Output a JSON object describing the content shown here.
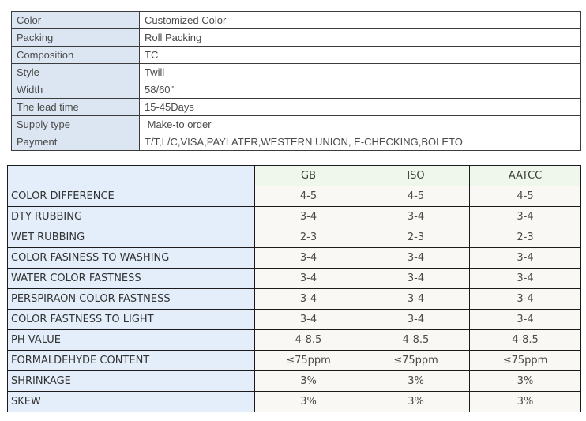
{
  "spec_table": {
    "rows": [
      {
        "label": "Color",
        "value": "Customized Color"
      },
      {
        "label": "Packing",
        "value": "Roll Packing"
      },
      {
        "label": "Composition",
        "value": "TC"
      },
      {
        "label": "Style",
        "value": "Twill"
      },
      {
        "label": "Width",
        "value": "58/60\""
      },
      {
        "label": "The lead time",
        "value": "15-45Days"
      },
      {
        "label": "Supply type",
        "value": " Make-to order"
      },
      {
        "label": "Payment",
        "value": "T/T,L/C,VISA,PAYLATER,WESTERN UNION, E-CHECKING,BOLETO"
      }
    ]
  },
  "standards_table": {
    "header": {
      "blank": "",
      "col1": "GB",
      "col2": "ISO",
      "col3": "AATCC"
    },
    "rows": [
      {
        "label": "COLOR DIFFERENCE",
        "gb": "4-5",
        "iso": "4-5",
        "aatcc": "4-5"
      },
      {
        "label": "DTY RUBBING",
        "gb": "3-4",
        "iso": "3-4",
        "aatcc": "3-4"
      },
      {
        "label": "WET RUBBING",
        "gb": "2-3",
        "iso": "2-3",
        "aatcc": "2-3"
      },
      {
        "label": "COLOR FASINESS TO WASHING",
        "gb": "3-4",
        "iso": "3-4",
        "aatcc": "3-4"
      },
      {
        "label": "WATER COLOR FASTNESS",
        "gb": "3-4",
        "iso": "3-4",
        "aatcc": "3-4"
      },
      {
        "label": "PERSPIRAON COLOR FASTNESS",
        "gb": "3-4",
        "iso": "3-4",
        "aatcc": "3-4"
      },
      {
        "label": "COLOR FASTNESS TO LIGHT",
        "gb": "3-4",
        "iso": "3-4",
        "aatcc": "3-4"
      },
      {
        "label": "PH VALUE",
        "gb": "4-8.5",
        "iso": "4-8.5",
        "aatcc": "4-8.5"
      },
      {
        "label": "FORMALDEHYDE CONTENT",
        "gb": "≤75ppm",
        "iso": "≤75ppm",
        "aatcc": "≤75ppm"
      },
      {
        "label": "SHRINKAGE",
        "gb": "3%",
        "iso": "3%",
        "aatcc": "3%"
      },
      {
        "label": "SKEW",
        "gb": "3%",
        "iso": "3%",
        "aatcc": "3%"
      }
    ]
  },
  "colors": {
    "spec_label_bg": "#dce6f2",
    "standards_label_bg": "#e3eefa",
    "standards_header_bg": "#eff7ec",
    "standards_value_bg": "#faf8f5",
    "spec_border": "#3c3c3c",
    "standards_border": "#1b1b1b"
  }
}
